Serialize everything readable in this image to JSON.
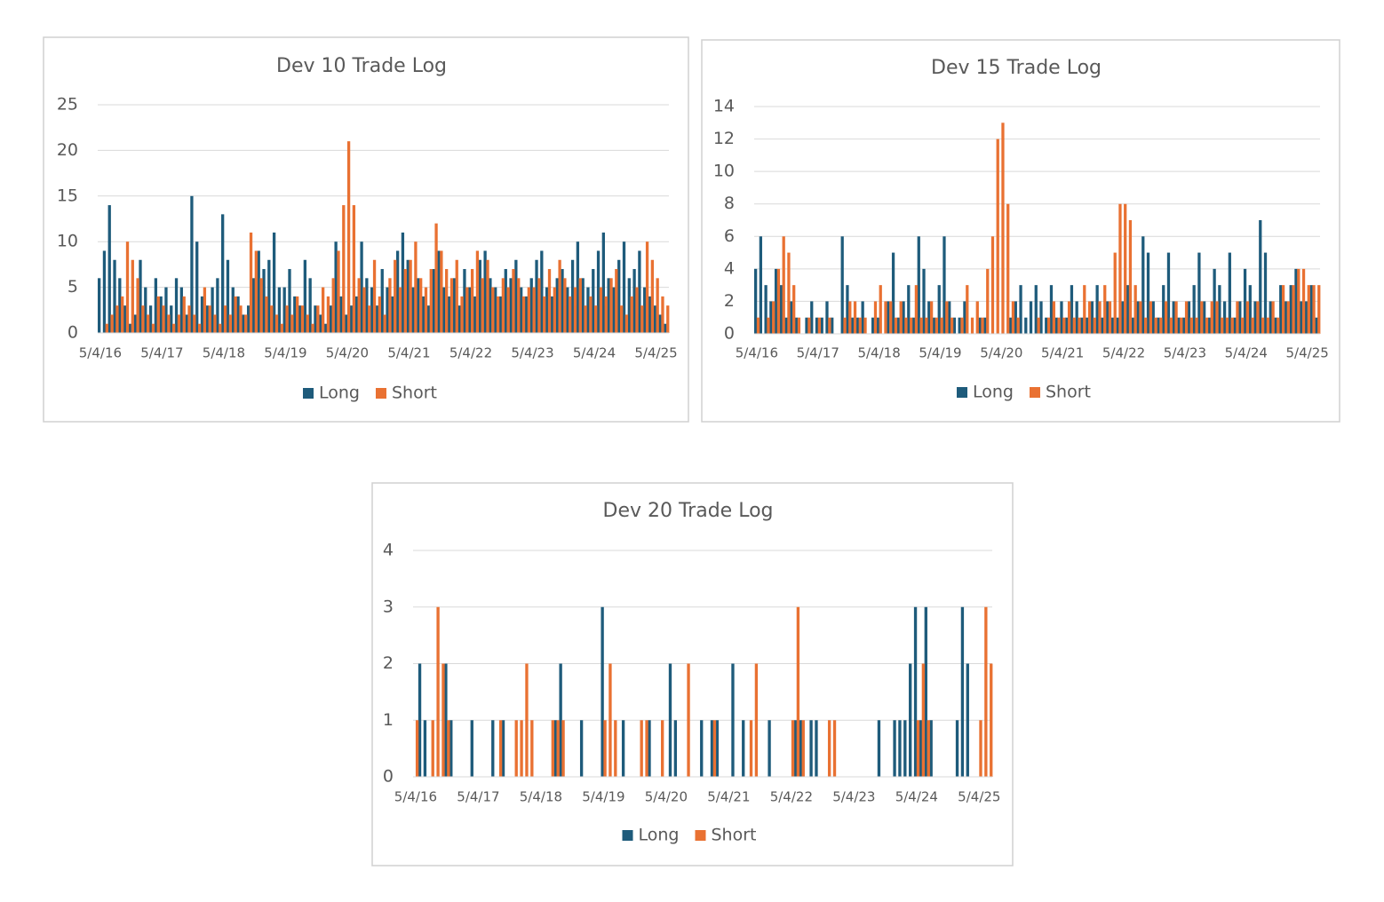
{
  "chart_data": [
    {
      "type": "bar",
      "title": "Dev 10 Trade Log",
      "categories": [
        "5/4/16",
        null,
        null,
        null,
        null,
        null,
        null,
        null,
        null,
        null,
        null,
        null,
        "5/4/17",
        null,
        null,
        null,
        null,
        null,
        null,
        null,
        null,
        null,
        null,
        null,
        "5/4/18",
        null,
        null,
        null,
        null,
        null,
        null,
        null,
        null,
        null,
        null,
        null,
        "5/4/19",
        null,
        null,
        null,
        null,
        null,
        null,
        null,
        null,
        null,
        null,
        null,
        "5/4/20",
        null,
        null,
        null,
        null,
        null,
        null,
        null,
        null,
        null,
        null,
        null,
        "5/4/21",
        null,
        null,
        null,
        null,
        null,
        null,
        null,
        null,
        null,
        null,
        null,
        "5/4/22",
        null,
        null,
        null,
        null,
        null,
        null,
        null,
        null,
        null,
        null,
        null,
        "5/4/23",
        null,
        null,
        null,
        null,
        null,
        null,
        null,
        null,
        null,
        null,
        null,
        "5/4/24",
        null,
        null,
        null,
        null,
        null,
        null,
        null,
        null,
        null,
        null,
        null,
        "5/4/25",
        null,
        null
      ],
      "series": [
        {
          "name": "Long",
          "color": "#1e5b7b",
          "values": [
            6,
            9,
            14,
            8,
            6,
            3,
            1,
            2,
            8,
            5,
            3,
            6,
            4,
            5,
            3,
            6,
            5,
            2,
            15,
            10,
            4,
            3,
            5,
            6,
            13,
            8,
            5,
            4,
            2,
            3,
            6,
            9,
            7,
            8,
            11,
            5,
            5,
            7,
            4,
            3,
            8,
            6,
            3,
            2,
            1,
            3,
            10,
            4,
            2,
            3,
            4,
            10,
            6,
            5,
            3,
            7,
            5,
            4,
            9,
            11,
            8,
            5,
            6,
            4,
            3,
            7,
            9,
            5,
            4,
            6,
            3,
            7,
            5,
            4,
            8,
            9,
            6,
            5,
            4,
            7,
            6,
            8,
            5,
            4,
            6,
            8,
            9,
            5,
            4,
            6,
            7,
            5,
            8,
            10,
            6,
            5,
            7,
            9,
            11,
            6,
            5,
            8,
            10,
            6,
            7,
            9,
            5,
            4,
            3,
            2,
            1
          ]
        },
        {
          "name": "Short",
          "color": "#e97132",
          "values": [
            0,
            1,
            2,
            3,
            4,
            10,
            8,
            6,
            3,
            2,
            1,
            4,
            3,
            2,
            1,
            2,
            4,
            3,
            2,
            1,
            5,
            3,
            2,
            1,
            3,
            2,
            4,
            3,
            2,
            11,
            9,
            6,
            4,
            3,
            2,
            1,
            3,
            2,
            4,
            3,
            2,
            1,
            3,
            5,
            4,
            6,
            9,
            14,
            21,
            14,
            6,
            5,
            3,
            8,
            4,
            2,
            6,
            8,
            5,
            7,
            8,
            10,
            6,
            5,
            7,
            12,
            9,
            7,
            6,
            8,
            4,
            5,
            7,
            9,
            6,
            8,
            5,
            4,
            6,
            5,
            7,
            6,
            4,
            5,
            5,
            6,
            4,
            7,
            5,
            8,
            6,
            4,
            5,
            6,
            3,
            4,
            3,
            5,
            4,
            6,
            7,
            3,
            2,
            4,
            5,
            3,
            10,
            8,
            6,
            4,
            3
          ]
        }
      ],
      "ylim": [
        0,
        25
      ],
      "yticks": [
        0,
        5,
        10,
        15,
        20,
        25
      ],
      "grid": true,
      "legend": "bottom"
    },
    {
      "type": "bar",
      "title": "Dev 15 Trade Log",
      "categories": [
        "5/4/16",
        null,
        null,
        null,
        null,
        null,
        null,
        null,
        null,
        null,
        null,
        null,
        "5/4/17",
        null,
        null,
        null,
        null,
        null,
        null,
        null,
        null,
        null,
        null,
        null,
        "5/4/18",
        null,
        null,
        null,
        null,
        null,
        null,
        null,
        null,
        null,
        null,
        null,
        "5/4/19",
        null,
        null,
        null,
        null,
        null,
        null,
        null,
        null,
        null,
        null,
        null,
        "5/4/20",
        null,
        null,
        null,
        null,
        null,
        null,
        null,
        null,
        null,
        null,
        null,
        "5/4/21",
        null,
        null,
        null,
        null,
        null,
        null,
        null,
        null,
        null,
        null,
        null,
        "5/4/22",
        null,
        null,
        null,
        null,
        null,
        null,
        null,
        null,
        null,
        null,
        null,
        "5/4/23",
        null,
        null,
        null,
        null,
        null,
        null,
        null,
        null,
        null,
        null,
        null,
        "5/4/24",
        null,
        null,
        null,
        null,
        null,
        null,
        null,
        null,
        null,
        null,
        null,
        "5/4/25",
        null,
        null
      ],
      "series": [
        {
          "name": "Long",
          "color": "#1e5b7b",
          "values": [
            4,
            6,
            3,
            2,
            4,
            3,
            1,
            2,
            1,
            0,
            1,
            2,
            1,
            1,
            2,
            1,
            0,
            6,
            3,
            1,
            1,
            2,
            0,
            1,
            1,
            0,
            2,
            5,
            1,
            2,
            3,
            1,
            6,
            4,
            2,
            1,
            3,
            6,
            2,
            1,
            1,
            2,
            0,
            0,
            1,
            1,
            0,
            0,
            0,
            0,
            1,
            2,
            3,
            1,
            2,
            3,
            2,
            1,
            3,
            1,
            2,
            1,
            3,
            2,
            1,
            1,
            2,
            3,
            1,
            2,
            1,
            1,
            2,
            3,
            1,
            2,
            6,
            5,
            2,
            1,
            3,
            5,
            2,
            1,
            1,
            2,
            3,
            5,
            2,
            1,
            4,
            3,
            2,
            5,
            1,
            2,
            4,
            3,
            2,
            7,
            5,
            2,
            1,
            3,
            2,
            3,
            4,
            2,
            2,
            3,
            1
          ]
        },
        {
          "name": "Short",
          "color": "#e97132",
          "values": [
            1,
            0,
            1,
            2,
            4,
            6,
            5,
            3,
            1,
            0,
            1,
            0,
            1,
            0,
            1,
            0,
            0,
            1,
            2,
            2,
            1,
            1,
            0,
            2,
            3,
            2,
            2,
            1,
            2,
            1,
            1,
            3,
            1,
            1,
            2,
            1,
            1,
            2,
            1,
            0,
            1,
            3,
            1,
            2,
            1,
            4,
            6,
            12,
            13,
            8,
            2,
            1,
            0,
            0,
            0,
            1,
            0,
            1,
            2,
            1,
            1,
            2,
            1,
            1,
            3,
            2,
            1,
            2,
            3,
            2,
            5,
            8,
            8,
            7,
            3,
            2,
            1,
            2,
            1,
            1,
            2,
            1,
            2,
            1,
            2,
            1,
            1,
            2,
            1,
            2,
            2,
            1,
            1,
            1,
            2,
            1,
            2,
            1,
            2,
            1,
            1,
            2,
            1,
            3,
            2,
            3,
            4,
            4,
            3,
            3,
            3
          ]
        }
      ],
      "ylim": [
        0,
        14
      ],
      "yticks": [
        0,
        2,
        4,
        6,
        8,
        10,
        12,
        14
      ],
      "grid": true,
      "legend": "bottom"
    },
    {
      "type": "bar",
      "title": "Dev 20 Trade Log",
      "categories": [
        "5/4/16",
        null,
        null,
        null,
        null,
        null,
        null,
        null,
        null,
        null,
        null,
        null,
        "5/4/17",
        null,
        null,
        null,
        null,
        null,
        null,
        null,
        null,
        null,
        null,
        null,
        "5/4/18",
        null,
        null,
        null,
        null,
        null,
        null,
        null,
        null,
        null,
        null,
        null,
        "5/4/19",
        null,
        null,
        null,
        null,
        null,
        null,
        null,
        null,
        null,
        null,
        null,
        "5/4/20",
        null,
        null,
        null,
        null,
        null,
        null,
        null,
        null,
        null,
        null,
        null,
        "5/4/21",
        null,
        null,
        null,
        null,
        null,
        null,
        null,
        null,
        null,
        null,
        null,
        "5/4/22",
        null,
        null,
        null,
        null,
        null,
        null,
        null,
        null,
        null,
        null,
        null,
        "5/4/23",
        null,
        null,
        null,
        null,
        null,
        null,
        null,
        null,
        null,
        null,
        null,
        "5/4/24",
        null,
        null,
        null,
        null,
        null,
        null,
        null,
        null,
        null,
        null,
        null,
        "5/4/25",
        null,
        null
      ],
      "series": [
        {
          "name": "Long",
          "color": "#1e5b7b",
          "values": [
            0,
            2,
            1,
            0,
            0,
            0,
            2,
            1,
            0,
            0,
            0,
            1,
            0,
            0,
            0,
            1,
            0,
            1,
            0,
            0,
            0,
            0,
            0,
            0,
            0,
            0,
            0,
            1,
            2,
            0,
            0,
            0,
            1,
            0,
            0,
            0,
            3,
            0,
            0,
            0,
            1,
            0,
            0,
            0,
            0,
            1,
            0,
            0,
            0,
            2,
            1,
            0,
            0,
            0,
            0,
            1,
            0,
            1,
            1,
            0,
            0,
            2,
            0,
            1,
            0,
            0,
            0,
            0,
            1,
            0,
            0,
            0,
            0,
            1,
            1,
            0,
            1,
            1,
            0,
            0,
            0,
            0,
            0,
            0,
            0,
            0,
            0,
            0,
            0,
            1,
            0,
            0,
            1,
            1,
            1,
            2,
            3,
            1,
            3,
            1,
            0,
            0,
            0,
            0,
            1,
            3,
            2,
            0,
            0,
            0,
            0
          ]
        },
        {
          "name": "Short",
          "color": "#e97132",
          "values": [
            1,
            0,
            0,
            1,
            3,
            2,
            1,
            0,
            0,
            0,
            0,
            0,
            0,
            0,
            0,
            0,
            1,
            0,
            0,
            1,
            1,
            2,
            1,
            0,
            0,
            0,
            1,
            1,
            1,
            0,
            0,
            0,
            0,
            0,
            0,
            0,
            1,
            2,
            1,
            0,
            0,
            0,
            0,
            1,
            1,
            0,
            0,
            1,
            0,
            0,
            0,
            0,
            2,
            0,
            0,
            0,
            0,
            1,
            0,
            0,
            0,
            0,
            0,
            0,
            1,
            2,
            0,
            0,
            0,
            0,
            0,
            0,
            1,
            3,
            1,
            0,
            0,
            0,
            0,
            1,
            1,
            0,
            0,
            0,
            0,
            0,
            0,
            0,
            0,
            0,
            0,
            0,
            0,
            0,
            0,
            0,
            1,
            2,
            1,
            0,
            0,
            0,
            0,
            0,
            0,
            0,
            0,
            0,
            1,
            3,
            2
          ]
        }
      ],
      "ylim": [
        0,
        4
      ],
      "yticks": [
        0,
        1,
        2,
        3,
        4
      ],
      "grid": true,
      "legend": "bottom"
    }
  ]
}
